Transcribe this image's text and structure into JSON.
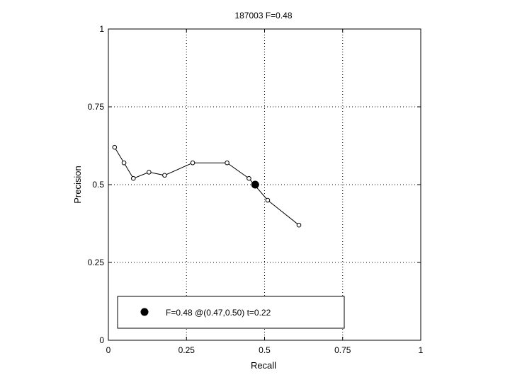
{
  "chart_data": {
    "type": "line",
    "title": "187003 F=0.48",
    "xlabel": "Recall",
    "ylabel": "Precision",
    "xlim": [
      0,
      1
    ],
    "ylim": [
      0,
      1
    ],
    "xticks": [
      0,
      0.25,
      0.5,
      0.75,
      1
    ],
    "yticks": [
      0,
      0.25,
      0.5,
      0.75,
      1
    ],
    "xtick_labels": [
      "0",
      "0.25",
      "0.5",
      "0.75",
      "1"
    ],
    "ytick_labels": [
      "0",
      "0.25",
      "0.5",
      "0.75",
      "1"
    ],
    "grid": true,
    "grid_style": "dotted",
    "series": [
      {
        "color": "#000000",
        "marker": "open-circle",
        "x": [
          0.02,
          0.05,
          0.08,
          0.13,
          0.18,
          0.27,
          0.38,
          0.45,
          0.51,
          0.61
        ],
        "y": [
          0.62,
          0.57,
          0.52,
          0.54,
          0.53,
          0.57,
          0.57,
          0.52,
          0.45,
          0.37
        ]
      }
    ],
    "highlight_point": {
      "x": 0.47,
      "y": 0.5,
      "marker": "filled-circle",
      "color": "#000000"
    },
    "legend": {
      "text": "F=0.48 @(0.47,0.50) t=0.22",
      "position": "bottom-left"
    }
  }
}
